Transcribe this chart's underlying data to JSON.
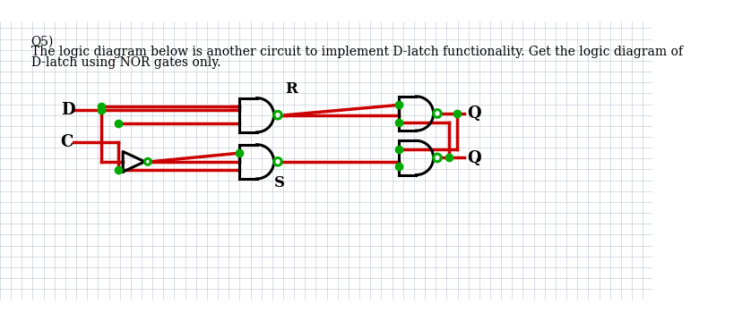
{
  "title_line1": "Q5)",
  "title_line2": "The logic diagram below is another circuit to implement D-latch functionality. Get the logic diagram of",
  "title_line3": "D-latch using NOR gates only.",
  "bg_color": "#f0f4f8",
  "grid_color": "#c8d0dc",
  "wire_color": "#cc0000",
  "gate_color": "#000000",
  "bubble_color": "#00aa00",
  "dot_color": "#00aa00",
  "text_color": "#000000",
  "label_D": "D",
  "label_C": "C",
  "label_R": "R",
  "label_S": "S",
  "label_Q": "Q",
  "label_Qbar": "Q",
  "label_Qbar2": "”"
}
